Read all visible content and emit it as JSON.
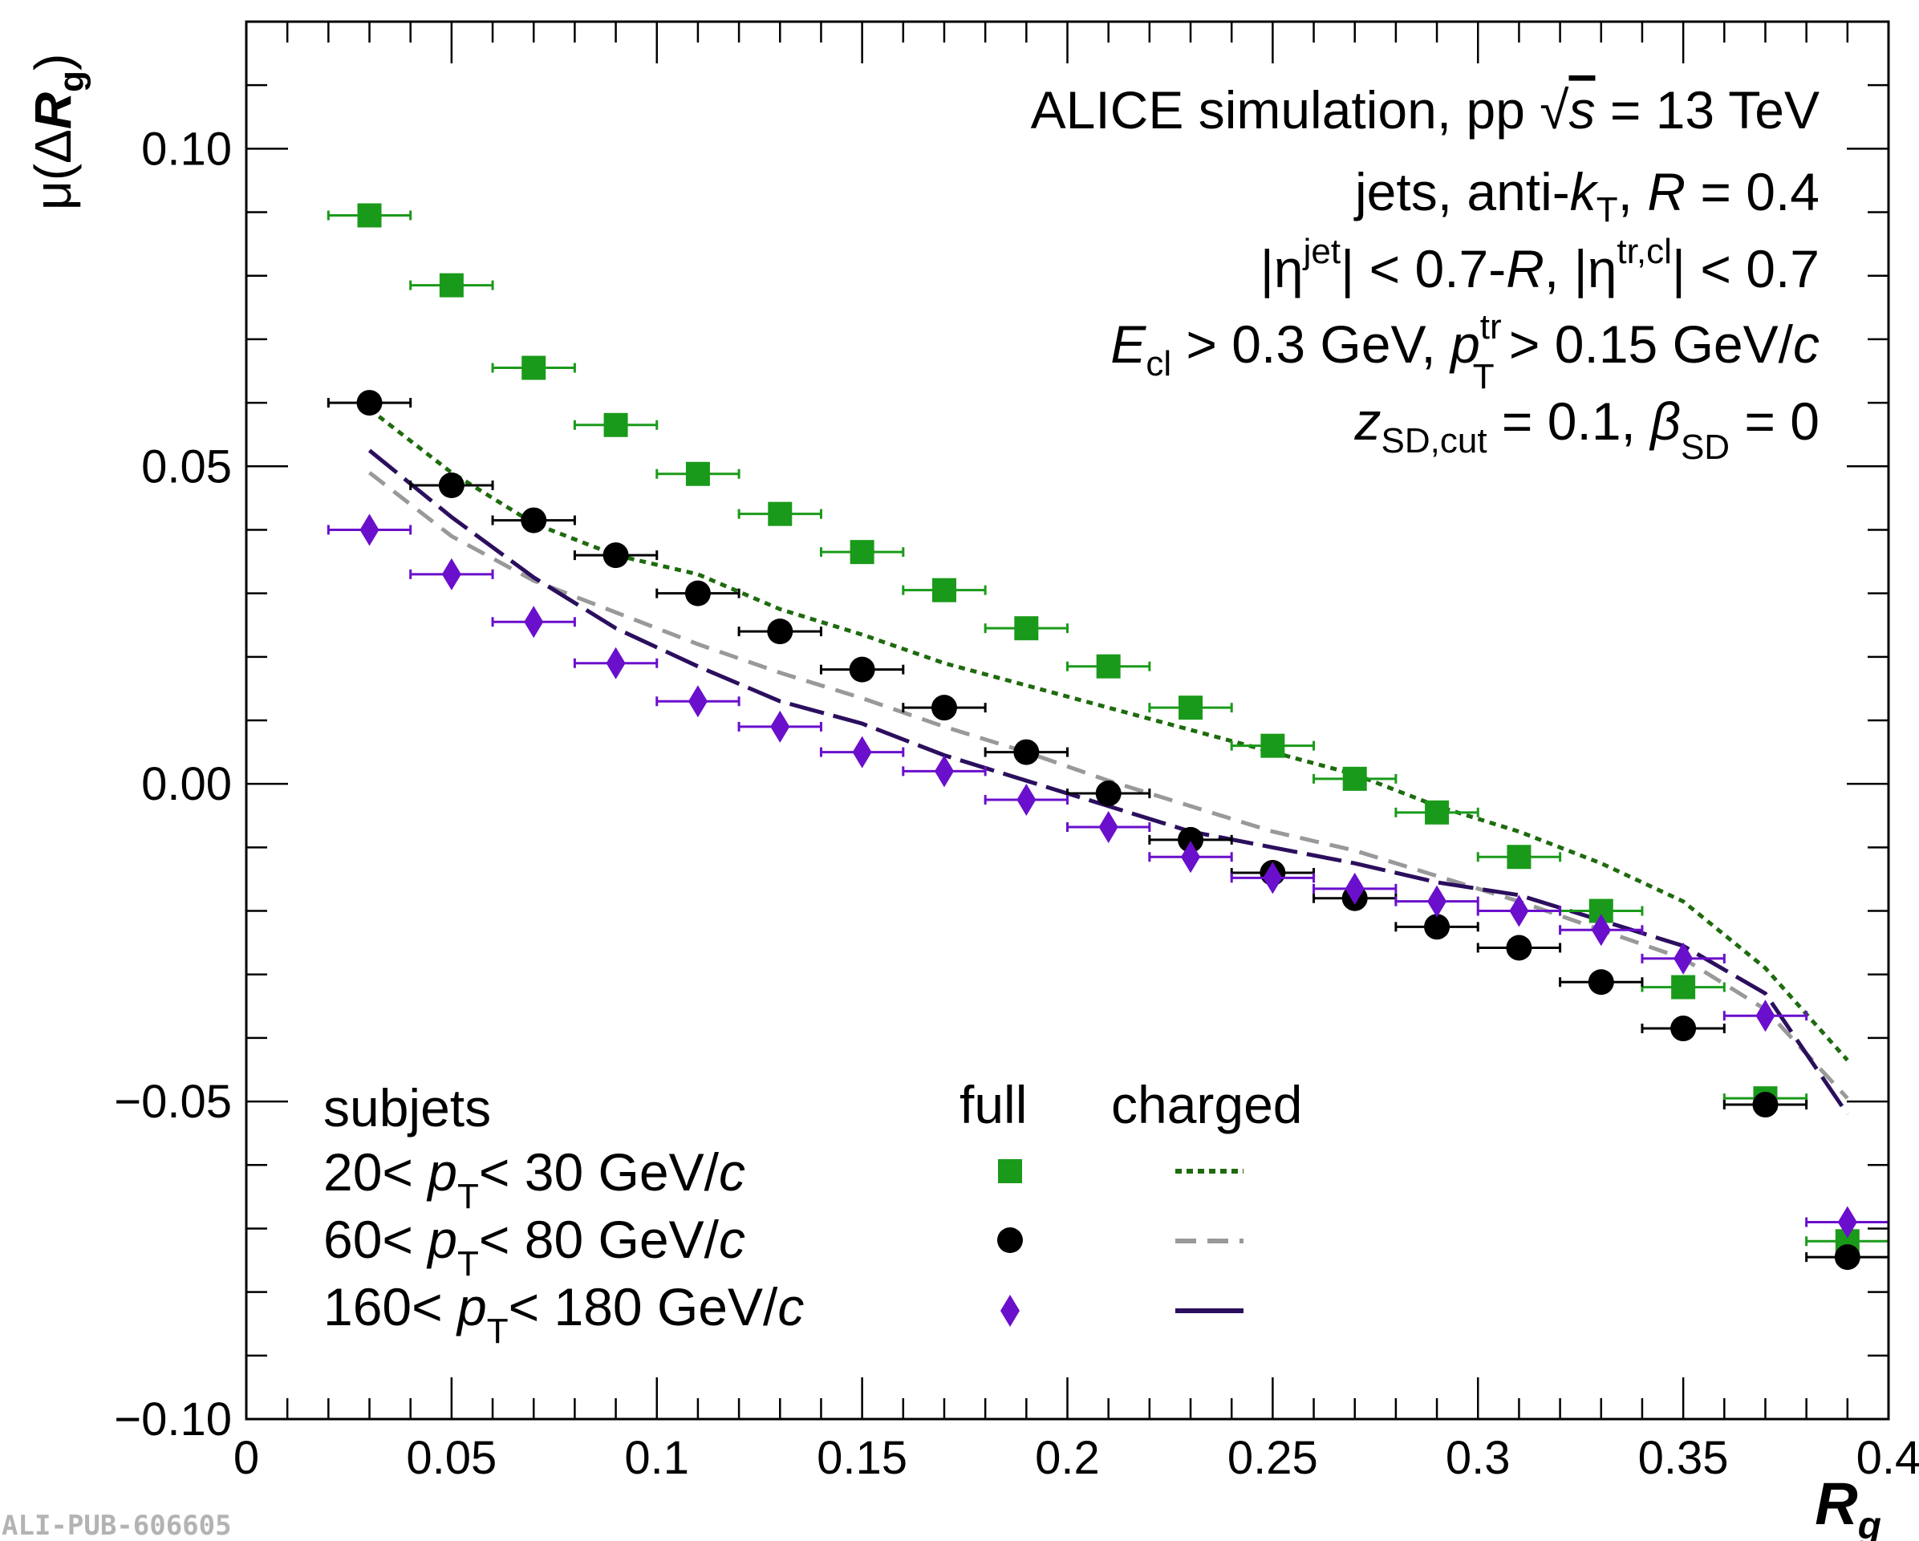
{
  "watermark": "ALI-PUB-606605",
  "chart_data": {
    "type": "scatter",
    "xlabel": "R_g",
    "ylabel": "μ(ΔR_g)",
    "xlim": [
      0,
      0.4
    ],
    "ylim": [
      -0.1,
      0.12
    ],
    "x_ticks": [
      "0",
      "0.05",
      "0.1",
      "0.15",
      "0.2",
      "0.25",
      "0.3",
      "0.35",
      "0.4"
    ],
    "y_ticks": [
      "0.10",
      "0.05",
      "0.00",
      "−0.05",
      "−0.10"
    ],
    "y_tick_values": [
      0.1,
      0.05,
      0.0,
      -0.05,
      -0.1
    ],
    "x_tick_values": [
      0,
      0.05,
      0.1,
      0.15,
      0.2,
      0.25,
      0.3,
      0.35,
      0.4
    ],
    "grid": false,
    "annotation_lines": [
      "ALICE simulation, pp √s = 13 TeV",
      "jets, anti-kT, R = 0.4",
      "|ηjet| < 0.7-R, |ηtr,cl| < 0.7",
      "Ecl > 0.3 GeV, pTtr > 0.15 GeV/c",
      "zSD,cut = 0.1, βSD = 0"
    ],
    "legend": {
      "placement": "bottom-left",
      "header": "subjets",
      "col_full": "full",
      "col_charged": "charged",
      "rows": [
        "20< pT< 30 GeV/c",
        "60< pT< 80 GeV/c",
        "160< pT< 180 GeV/c"
      ]
    },
    "x": [
      0.03,
      0.05,
      0.07,
      0.09,
      0.11,
      0.13,
      0.15,
      0.17,
      0.19,
      0.21,
      0.23,
      0.25,
      0.27,
      0.29,
      0.31,
      0.33,
      0.35,
      0.37,
      0.39
    ],
    "x_err": 0.01,
    "series": [
      {
        "name": "20< pT< 30 GeV/c",
        "kind": "full",
        "marker": "square",
        "color": "#1a9a1a",
        "values": [
          0.0895,
          0.0785,
          0.0655,
          0.0565,
          0.0488,
          0.0425,
          0.0365,
          0.0305,
          0.0245,
          0.0185,
          0.012,
          0.006,
          0.0008,
          -0.0045,
          -0.0115,
          -0.02,
          -0.032,
          -0.0495,
          -0.072
        ]
      },
      {
        "name": "60< pT< 80 GeV/c",
        "kind": "full",
        "marker": "circle",
        "color": "#000000",
        "values": [
          0.06,
          0.047,
          0.0415,
          0.036,
          0.03,
          0.024,
          0.018,
          0.012,
          0.005,
          -0.0015,
          -0.0088,
          -0.014,
          -0.018,
          -0.0225,
          -0.0258,
          -0.0312,
          -0.0385,
          -0.0505,
          -0.0745
        ]
      },
      {
        "name": "160< pT< 180 GeV/c",
        "kind": "full",
        "marker": "diamond",
        "color": "#6a0fcc",
        "values": [
          0.04,
          0.033,
          0.0255,
          0.019,
          0.013,
          0.009,
          0.005,
          0.002,
          -0.0025,
          -0.0068,
          -0.0115,
          -0.0148,
          -0.0165,
          -0.0185,
          -0.02,
          -0.023,
          -0.0275,
          -0.0365,
          -0.069
        ]
      },
      {
        "name": "20< pT< 30 GeV/c",
        "kind": "charged",
        "style": "dotted",
        "color": "#1e6b0e",
        "values": [
          0.059,
          0.049,
          0.041,
          0.036,
          0.033,
          0.0275,
          0.0235,
          0.019,
          0.0155,
          0.012,
          0.0085,
          0.005,
          0.0015,
          -0.0035,
          -0.0075,
          -0.0125,
          -0.0185,
          -0.029,
          -0.0435
        ]
      },
      {
        "name": "60< pT< 80 GeV/c",
        "kind": "charged",
        "style": "dashed",
        "color": "#999999",
        "values": [
          0.049,
          0.039,
          0.032,
          0.027,
          0.022,
          0.0175,
          0.0135,
          0.009,
          0.005,
          0.0005,
          -0.0035,
          -0.0075,
          -0.0105,
          -0.0145,
          -0.0185,
          -0.023,
          -0.0275,
          -0.0355,
          -0.0495
        ]
      },
      {
        "name": "160< pT< 180 GeV/c",
        "kind": "charged",
        "style": "long-dash",
        "color": "#2b0f5e",
        "values": [
          0.0525,
          0.042,
          0.0325,
          0.0245,
          0.0185,
          0.013,
          0.0095,
          0.0045,
          0.0005,
          -0.0035,
          -0.0075,
          -0.01,
          -0.0125,
          -0.0155,
          -0.0175,
          -0.0215,
          -0.0255,
          -0.033,
          -0.052
        ]
      }
    ]
  }
}
